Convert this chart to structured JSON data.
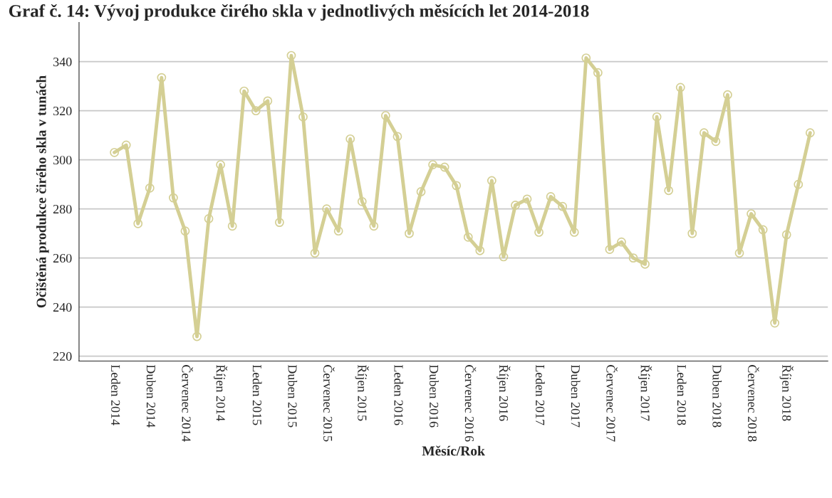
{
  "chart_data": {
    "type": "line",
    "title": "Graf č. 14: Vývoj produkce čirého skla v jednotlivých měsících let 2014-2018",
    "xlabel": "Měsíc/Rok",
    "ylabel": "Očištěná produkce čirého skla v tunách",
    "categories": [
      "Leden 2014",
      null,
      null,
      "Duben 2014",
      null,
      null,
      "Červenec 2014",
      null,
      null,
      "Říjen 2014",
      null,
      null,
      "Leden 2015",
      null,
      null,
      "Duben 2015",
      null,
      null,
      "Červenec 2015",
      null,
      null,
      "Říjen 2015",
      null,
      null,
      "Leden 2016",
      null,
      null,
      "Duben 2016",
      null,
      null,
      "Červenec 2016",
      null,
      null,
      "Říjen 2016",
      null,
      null,
      "Leden 2017",
      null,
      null,
      "Duben 2017",
      null,
      null,
      "Červenec 2017",
      null,
      null,
      "Říjen 2017",
      null,
      null,
      "Leden 2018",
      null,
      null,
      "Duben 2018",
      null,
      null,
      "Červenec 2018",
      null,
      null,
      "Říjen 2018",
      null,
      null
    ],
    "series": [
      {
        "color": "#d4cf94",
        "values": [
          303,
          306,
          274,
          288.5,
          333.5,
          284.5,
          271,
          228,
          276,
          298,
          273,
          328,
          320,
          324,
          274.5,
          342.5,
          317.5,
          262,
          280,
          271,
          308.5,
          283,
          273,
          318,
          309.5,
          270,
          287,
          298,
          297,
          289.5,
          268.5,
          263,
          291.5,
          260.5,
          281.5,
          284,
          270.5,
          285,
          281,
          270.5,
          341.5,
          335.5,
          263.5,
          266.5,
          260,
          257.5,
          317.5,
          287.5,
          329.5,
          270,
          311,
          307.5,
          326.5,
          262,
          278,
          271.5,
          233.5,
          269.5,
          290,
          311
        ]
      }
    ],
    "ylim": [
      218,
      356
    ],
    "yticks": [
      220,
      240,
      260,
      280,
      300,
      320,
      340
    ],
    "grid": "y",
    "marker": "circle",
    "line_style": "solid",
    "legend": false
  }
}
